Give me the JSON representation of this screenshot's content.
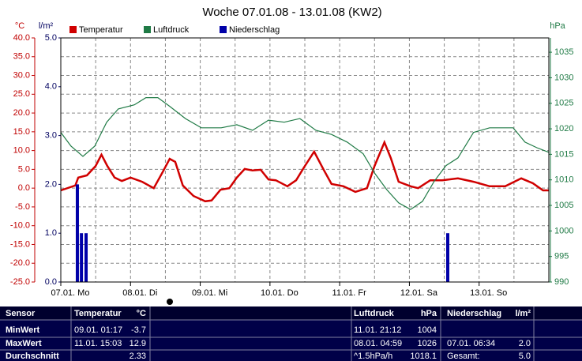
{
  "chart_data": {
    "type": "line",
    "title": "Woche 07.01.08 - 13.01.08 (KW2)",
    "y_unit": "°C",
    "y2_unit": "l/m²",
    "y3_unit": "hPa",
    "xlim": [
      0,
      168
    ],
    "xticks": [
      {
        "value": 0,
        "label": "07.01. Mo"
      },
      {
        "value": 24,
        "label": "08.01. Di"
      },
      {
        "value": 48,
        "label": "09.01. Mi"
      },
      {
        "value": 72,
        "label": "10.01. Do"
      },
      {
        "value": 96,
        "label": "11.01. Fr"
      },
      {
        "value": 120,
        "label": "12.01. Sa"
      },
      {
        "value": 144,
        "label": "13.01. So"
      }
    ],
    "ylim": [
      -25,
      40
    ],
    "yticks": [
      {
        "value": -25,
        "label": "-25.0"
      },
      {
        "value": -20,
        "label": "-20.0"
      },
      {
        "value": -15,
        "label": "-15.0"
      },
      {
        "value": -10,
        "label": "-10.0"
      },
      {
        "value": -5,
        "label": "-5.0"
      },
      {
        "value": 0,
        "label": "0.0"
      },
      {
        "value": 5,
        "label": "5.0"
      },
      {
        "value": 10,
        "label": "10.0"
      },
      {
        "value": 15,
        "label": "15.0"
      },
      {
        "value": 20,
        "label": "20.0"
      },
      {
        "value": 25,
        "label": "25.0"
      },
      {
        "value": 30,
        "label": "30.0"
      },
      {
        "value": 35,
        "label": "35.0"
      },
      {
        "value": 40,
        "label": "40.0"
      }
    ],
    "y2lim": [
      0,
      5
    ],
    "y2ticks": [
      {
        "value": 0,
        "label": "0.0"
      },
      {
        "value": 1,
        "label": "1.0"
      },
      {
        "value": 2,
        "label": "2.0"
      },
      {
        "value": 3,
        "label": "3.0"
      },
      {
        "value": 4,
        "label": "4.0"
      },
      {
        "value": 5,
        "label": "5.0"
      }
    ],
    "y3lim": [
      990,
      1037.8
    ],
    "y3ticks": [
      990,
      995,
      1000,
      1005,
      1010,
      1015,
      1020,
      1025,
      1030,
      1035
    ],
    "grid": true,
    "series": [
      {
        "name": "Temperatur",
        "color": "#d00000",
        "axis": "y",
        "x": [
          0,
          5,
          6,
          9,
          12,
          14,
          16,
          18.5,
          21,
          24,
          28,
          32,
          35,
          37.5,
          39.4,
          42,
          45.7,
          49.7,
          51.9,
          55,
          58,
          60.6,
          63.3,
          66,
          68.8,
          71.5,
          74,
          78,
          81,
          83.7,
          87.2,
          90.5,
          93.2,
          97.3,
          101.4,
          105.4,
          108,
          111.4,
          113.6,
          116.3,
          120.4,
          123,
          127.2,
          131.3,
          136.7,
          142.1,
          147.6,
          153,
          158.5,
          162.5,
          166,
          168
        ],
        "values": [
          -0.6,
          0.7,
          2.8,
          3.4,
          5.9,
          8.9,
          5.9,
          2.8,
          1.9,
          2.8,
          1.7,
          0.0,
          4.2,
          7.8,
          7.0,
          0.7,
          -2.1,
          -3.5,
          -3.3,
          -0.4,
          0.0,
          2.8,
          5.1,
          4.7,
          4.9,
          2.3,
          2.1,
          0.5,
          2.1,
          5.5,
          9.7,
          4.9,
          1.1,
          0.5,
          -1.0,
          0.0,
          5.9,
          12.2,
          8.0,
          1.7,
          0.5,
          0.0,
          2.1,
          2.1,
          2.6,
          1.7,
          0.5,
          0.5,
          2.6,
          1.3,
          -0.6,
          -0.6
        ]
      },
      {
        "name": "Luftdruck",
        "color": "#1f7a45",
        "axis": "y3",
        "x": [
          0,
          3.5,
          7.6,
          11.7,
          15.8,
          19.8,
          25.3,
          29.3,
          33.4,
          37.5,
          42.9,
          48.4,
          55.2,
          60.6,
          66,
          71.5,
          76.9,
          82.3,
          87.8,
          93.2,
          98.6,
          104.1,
          108.2,
          112.2,
          116.3,
          120.4,
          124.5,
          128.5,
          132.6,
          136.7,
          142.1,
          147.6,
          155.7,
          159.8,
          163.9,
          168
        ],
        "values": [
          1019.3,
          1016.6,
          1014.6,
          1016.6,
          1021.3,
          1023.9,
          1024.7,
          1026.1,
          1026.1,
          1024.4,
          1022.0,
          1020.2,
          1020.2,
          1020.8,
          1019.7,
          1021.7,
          1021.3,
          1022.0,
          1019.7,
          1018.9,
          1017.4,
          1015.1,
          1011.2,
          1008.1,
          1005.5,
          1004.2,
          1005.8,
          1009.7,
          1012.8,
          1014.3,
          1019.3,
          1020.2,
          1020.2,
          1017.4,
          1016.3,
          1015.4
        ]
      },
      {
        "name": "Niederschlag",
        "color": "#0000a8",
        "axis": "y2",
        "type": "bar",
        "x": [
          5.7,
          7.1,
          8.7,
          133.2
        ],
        "values": [
          2.0,
          1.0,
          1.0,
          1.0
        ]
      }
    ]
  },
  "table": {
    "header": [
      "Sensor",
      "Temperatur",
      "°C",
      "Luftdruck",
      "hPa",
      "Niederschlag",
      "l/m²"
    ],
    "rows": [
      [
        "MinWert",
        "09.01. 01:17",
        "-3.7",
        "11.01. 21:12",
        "1004",
        null,
        null
      ],
      [
        "MaxWert",
        "11.01. 15:03",
        "12.9",
        "08.01. 04:59",
        "1026",
        "07.01. 06:34",
        "2.0"
      ],
      [
        "Durchschnitt",
        null,
        "2.33",
        "^1.5hPa/h",
        "1018.1",
        "Gesamt:",
        "5.0"
      ]
    ]
  }
}
